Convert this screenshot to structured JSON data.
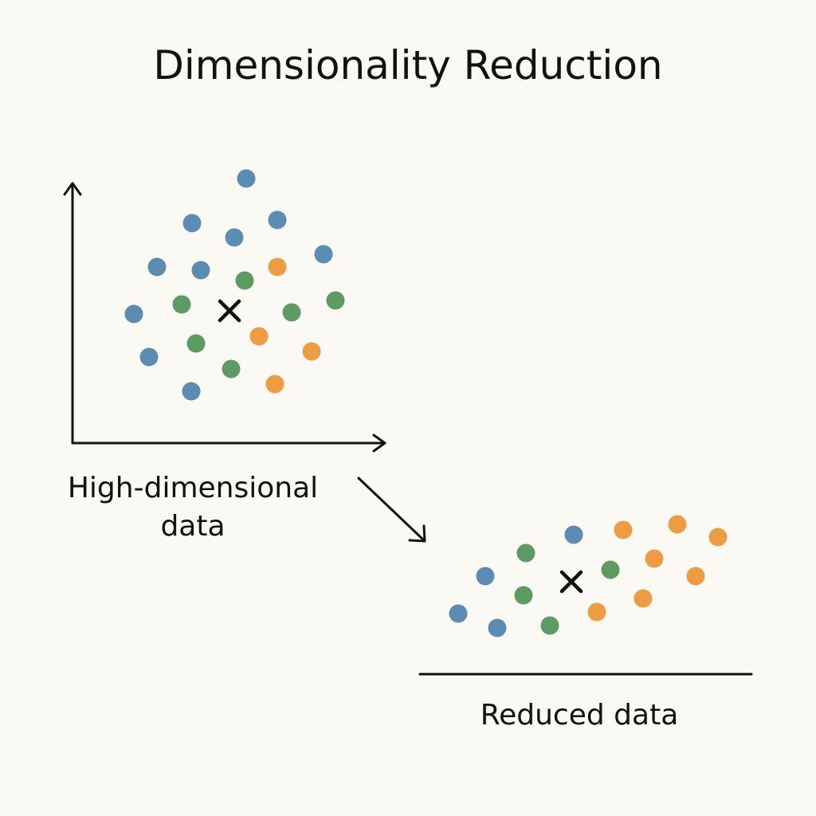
{
  "title": "Dimensionality Reduction",
  "colors": {
    "background": "#fbf9f4",
    "ink": "#111111",
    "blue": "#5d8cb2",
    "green": "#5e9b63",
    "orange": "#ee9c44"
  },
  "panels": {
    "high_dim": {
      "label_line1": "High-dimensional",
      "label_line2": "data",
      "center_marker": "cross-icon"
    },
    "reduced": {
      "label": "Reduced data",
      "center_marker": "cross-icon"
    }
  },
  "arrow_icon": "arrow-down-right-icon"
}
